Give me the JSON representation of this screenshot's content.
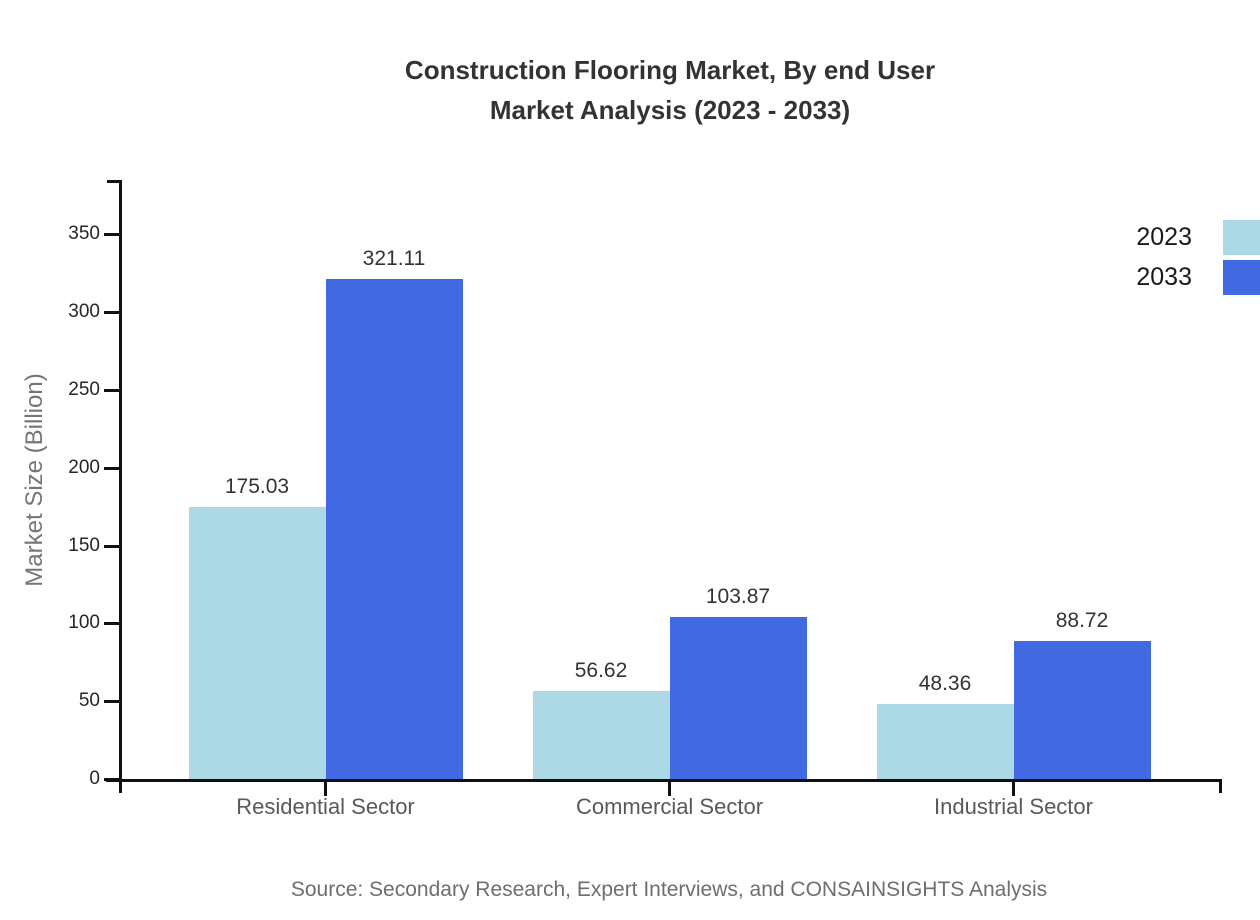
{
  "title": {
    "line1": "Construction Flooring Market, By end User",
    "line2": "Market Analysis (2023 - 2033)"
  },
  "source": "Source: Secondary Research, Expert Interviews, and CONSAINSIGHTS Analysis",
  "chart_data": {
    "type": "bar",
    "categories": [
      "Residential Sector",
      "Commercial Sector",
      "Industrial Sector"
    ],
    "series": [
      {
        "name": "2023",
        "color": "#ADD8E6",
        "values": [
          175.03,
          56.62,
          48.36
        ]
      },
      {
        "name": "2033",
        "color": "#4169E1",
        "values": [
          321.11,
          103.87,
          88.72
        ]
      }
    ],
    "value_labels": [
      "175.03",
      "321.11",
      "56.62",
      "103.87",
      "48.36",
      "88.72"
    ],
    "title": "Construction Flooring Market, By end User Market Analysis (2023 - 2033)",
    "xlabel": "",
    "ylabel": "Market Size (Billion)",
    "ylim": [
      0,
      385
    ],
    "yticks": [
      0,
      50,
      100,
      150,
      200,
      250,
      300,
      350
    ],
    "grid": false,
    "legend_position": "top-right",
    "background": "#ffffff"
  }
}
